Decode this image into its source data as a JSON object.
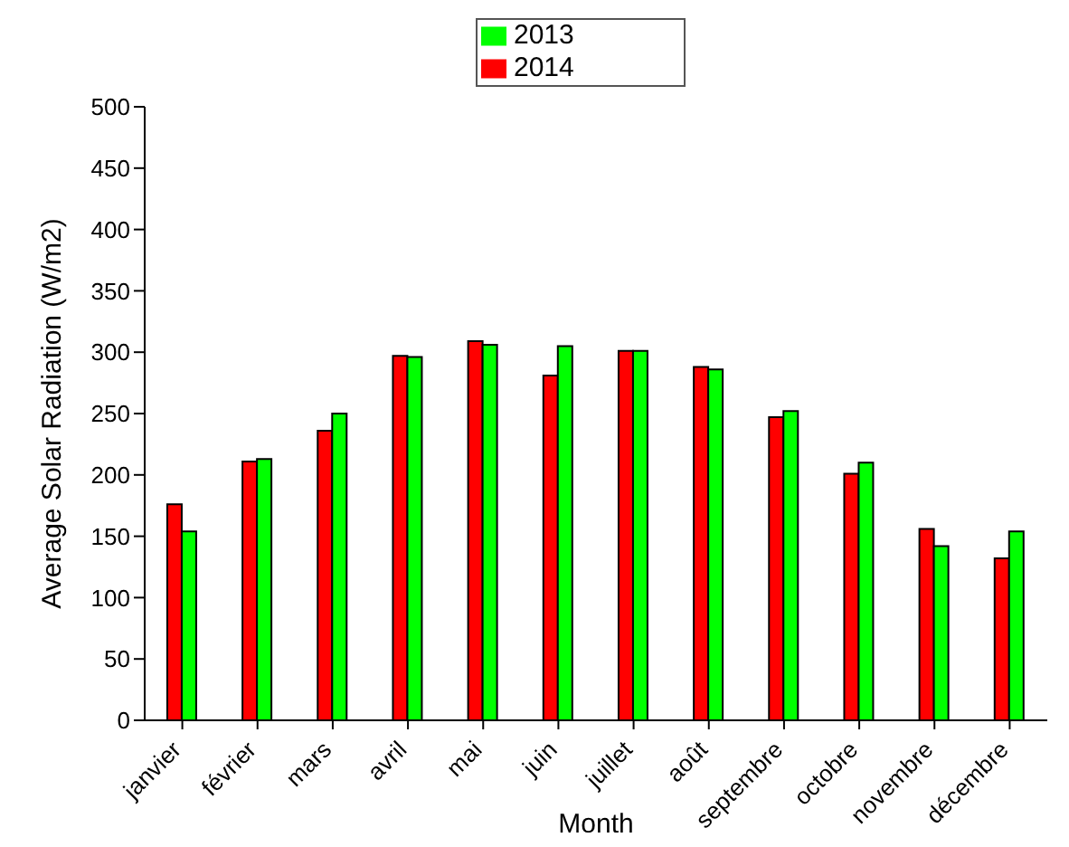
{
  "chart_data": {
    "type": "bar",
    "xlabel": "Month",
    "ylabel": "Average Solar Radiation (W/m2)",
    "categories": [
      "janvier",
      "février",
      "mars",
      "avril",
      "mai",
      "juin",
      "juillet",
      "août",
      "septembre",
      "octobre",
      "novembre",
      "décembre"
    ],
    "series": [
      {
        "name": "2014",
        "color": "#ff0000",
        "values": [
          176,
          211,
          236,
          297,
          309,
          281,
          301,
          288,
          247,
          201,
          156,
          132
        ]
      },
      {
        "name": "2013",
        "color": "#00ff00",
        "values": [
          154,
          213,
          250,
          296,
          306,
          305,
          301,
          286,
          252,
          210,
          142,
          154
        ]
      }
    ],
    "ylim": [
      0,
      500
    ],
    "yticks": [
      0,
      50,
      100,
      150,
      200,
      250,
      300,
      350,
      400,
      450,
      500
    ],
    "grid": false,
    "legend": "top"
  }
}
